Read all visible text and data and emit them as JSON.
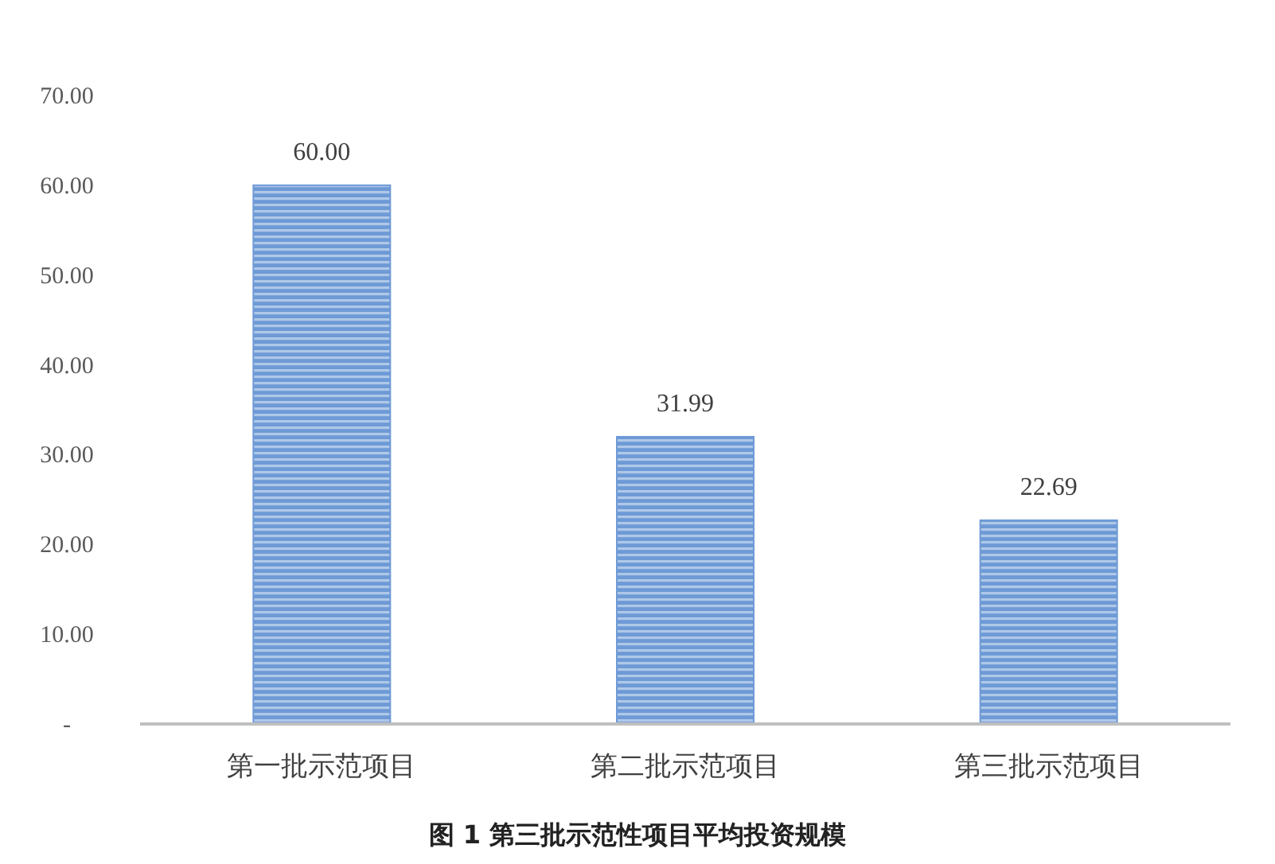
{
  "chart_data": {
    "type": "bar",
    "title": "图 1 第三批示范性项目平均投资规模",
    "categories": [
      "第一批示范项目",
      "第二批示范项目",
      "第三批示范项目"
    ],
    "values": [
      60.0,
      31.99,
      22.69
    ],
    "value_labels": [
      "60.00",
      "31.99",
      "22.69"
    ],
    "color": "#6e9ad6",
    "ylim": [
      0,
      70
    ],
    "yticks": [
      {
        "value": 0,
        "label": "-"
      },
      {
        "value": 10,
        "label": "10.00"
      },
      {
        "value": 20,
        "label": "20.00"
      },
      {
        "value": 30,
        "label": "30.00"
      },
      {
        "value": 40,
        "label": "40.00"
      },
      {
        "value": 50,
        "label": "50.00"
      },
      {
        "value": 60,
        "label": "60.00"
      },
      {
        "value": 70,
        "label": "70.00"
      }
    ],
    "grid": false
  }
}
